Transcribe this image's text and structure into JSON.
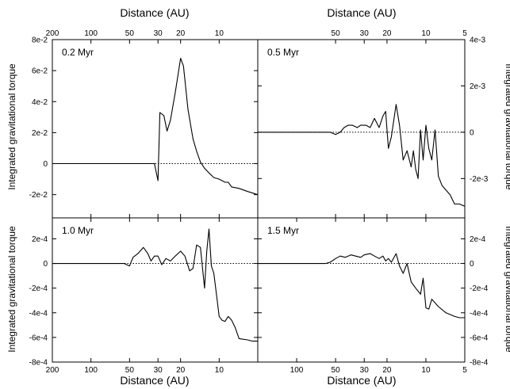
{
  "chart_data": [
    {
      "type": "line",
      "panel": "top-left",
      "label": "0.2 Myr",
      "xlabel": "Distance (AU)",
      "ylabel": "Integrated gravitational torque",
      "xscale": "log",
      "xlim": [
        200,
        5
      ],
      "ylim": [
        -0.035,
        0.08
      ],
      "x_ticks": [
        200,
        100,
        50,
        30,
        20,
        10
      ],
      "x_tick_labels": [
        "200",
        "100",
        "50",
        "30",
        "20",
        "10"
      ],
      "y_ticks": [
        -0.02,
        0,
        0.02,
        0.04,
        0.06,
        0.08
      ],
      "y_tick_labels": [
        "-2e-2",
        "0",
        "2e-2",
        "4e-2",
        "6e-2",
        "8e-2"
      ],
      "reference_line": 0,
      "series": [
        {
          "values": [
            [
              200,
              0
            ],
            [
              100,
              0
            ],
            [
              60,
              0
            ],
            [
              40,
              0
            ],
            [
              32,
              0
            ],
            [
              30,
              -0.011
            ],
            [
              29,
              0.033
            ],
            [
              27,
              0.031
            ],
            [
              25.5,
              0.021
            ],
            [
              24,
              0.028
            ],
            [
              22,
              0.046
            ],
            [
              20.5,
              0.062
            ],
            [
              20,
              0.068
            ],
            [
              19,
              0.063
            ],
            [
              17.5,
              0.035
            ],
            [
              16,
              0.016
            ],
            [
              15,
              0.008
            ],
            [
              14,
              0.001
            ],
            [
              13,
              -0.003
            ],
            [
              12,
              -0.006
            ],
            [
              11,
              -0.009
            ],
            [
              10,
              -0.01
            ],
            [
              9,
              -0.012
            ],
            [
              8.5,
              -0.012
            ],
            [
              8,
              -0.015
            ],
            [
              7,
              -0.016
            ],
            [
              6,
              -0.018
            ],
            [
              5,
              -0.02
            ]
          ]
        }
      ]
    },
    {
      "type": "line",
      "panel": "top-right",
      "label": "0.5 Myr",
      "xlabel": "Distance (AU)",
      "ylabel": "Integrated gravitational torque",
      "xscale": "log",
      "xlim": [
        200,
        5
      ],
      "ylim": [
        -0.0037,
        0.004
      ],
      "x_ticks": [
        50,
        30,
        20,
        10,
        5
      ],
      "x_tick_labels": [
        "50",
        "30",
        "20",
        "10",
        "5"
      ],
      "y_ticks": [
        -0.002,
        0,
        0.002,
        0.004
      ],
      "y_tick_labels": [
        "-2e-3",
        "0",
        "2e-3",
        "4e-3"
      ],
      "reference_line": 0,
      "series": [
        {
          "values": [
            [
              200,
              0
            ],
            [
              100,
              0
            ],
            [
              55,
              0
            ],
            [
              50,
              -0.0001
            ],
            [
              46,
              0
            ],
            [
              43,
              0.0002
            ],
            [
              40,
              0.0003
            ],
            [
              37,
              0.0003
            ],
            [
              34,
              0.0002
            ],
            [
              32,
              0.0003
            ],
            [
              29,
              0.0003
            ],
            [
              27,
              0.0002
            ],
            [
              25,
              0.0006
            ],
            [
              23,
              0.0002
            ],
            [
              21.5,
              0.0007
            ],
            [
              20.5,
              0.0009
            ],
            [
              19.5,
              -0.0007
            ],
            [
              18.5,
              -0.0002
            ],
            [
              17,
              0.0012
            ],
            [
              16,
              0.0003
            ],
            [
              15,
              -0.0012
            ],
            [
              14,
              -0.0008
            ],
            [
              13,
              -0.0015
            ],
            [
              12.5,
              -0.0008
            ],
            [
              12,
              -0.0016
            ],
            [
              11.5,
              -0.002
            ],
            [
              11,
              0.0001
            ],
            [
              10.5,
              -0.0012
            ],
            [
              10,
              0.0003
            ],
            [
              9.5,
              -0.0007
            ],
            [
              9,
              -0.0012
            ],
            [
              8.5,
              0.0001
            ],
            [
              8,
              -0.0019
            ],
            [
              7.5,
              -0.0023
            ],
            [
              7,
              -0.0025
            ],
            [
              6.5,
              -0.0027
            ],
            [
              6,
              -0.0031
            ],
            [
              5.5,
              -0.0031
            ],
            [
              5,
              -0.0032
            ]
          ]
        }
      ]
    },
    {
      "type": "line",
      "panel": "bottom-left",
      "label": "1.0 Myr",
      "xlabel": "Distance (AU)",
      "ylabel": "Integrated gravitational torque",
      "xscale": "log",
      "xlim": [
        200,
        5
      ],
      "ylim": [
        -0.0008,
        0.00037
      ],
      "x_ticks": [
        200,
        100,
        50,
        30,
        20,
        10
      ],
      "x_tick_labels": [
        "200",
        "100",
        "50",
        "30",
        "20",
        "10"
      ],
      "y_ticks": [
        -0.0008,
        -0.0006,
        -0.0004,
        -0.0002,
        0,
        0.0002
      ],
      "y_tick_labels": [
        "-8e-4",
        "-6e-4",
        "-4e-4",
        "-2e-4",
        "0",
        "2e-4"
      ],
      "reference_line": 0,
      "series": [
        {
          "values": [
            [
              200,
              0
            ],
            [
              100,
              0
            ],
            [
              55,
              0
            ],
            [
              50,
              -2e-05
            ],
            [
              47,
              5e-05
            ],
            [
              43,
              8e-05
            ],
            [
              39,
              0.00013
            ],
            [
              36,
              8e-05
            ],
            [
              34,
              2e-05
            ],
            [
              32,
              6e-05
            ],
            [
              30,
              6e-05
            ],
            [
              28,
              -1e-05
            ],
            [
              26,
              4e-05
            ],
            [
              24,
              2e-05
            ],
            [
              22,
              6e-05
            ],
            [
              20,
              0.0001
            ],
            [
              18.5,
              6e-05
            ],
            [
              17,
              -6e-05
            ],
            [
              16,
              -4e-05
            ],
            [
              15,
              0.00015
            ],
            [
              14,
              0.00013
            ],
            [
              13,
              -0.0002
            ],
            [
              12.5,
              0.0001
            ],
            [
              12,
              0.00028
            ],
            [
              11.5,
              -2e-05
            ],
            [
              11,
              -8e-05
            ],
            [
              10.5,
              -0.00025
            ],
            [
              10,
              -0.00043
            ],
            [
              9.5,
              -0.00046
            ],
            [
              9,
              -0.00047
            ],
            [
              8.5,
              -0.00043
            ],
            [
              8,
              -0.00046
            ],
            [
              7.5,
              -0.00052
            ],
            [
              7,
              -0.00061
            ],
            [
              6,
              -0.00062
            ],
            [
              5.5,
              -0.00063
            ],
            [
              5,
              -0.00063
            ]
          ]
        }
      ]
    },
    {
      "type": "line",
      "panel": "bottom-right",
      "label": "1.5 Myr",
      "xlabel": "Distance (AU)",
      "ylabel": "Integrated gravitational torque",
      "xscale": "log",
      "xlim": [
        200,
        5
      ],
      "ylim": [
        -0.0008,
        0.00037
      ],
      "x_ticks": [
        100,
        50,
        30,
        20,
        10,
        5
      ],
      "x_tick_labels": [
        "100",
        "50",
        "30",
        "20",
        "10",
        "5"
      ],
      "y_ticks": [
        -0.0008,
        -0.0006,
        -0.0004,
        -0.0002,
        0,
        0.0002
      ],
      "y_tick_labels": [
        "-8e-4",
        "-6e-4",
        "-4e-4",
        "-2e-4",
        "0",
        "2e-4"
      ],
      "reference_line": 0,
      "series": [
        {
          "values": [
            [
              200,
              0
            ],
            [
              100,
              0
            ],
            [
              60,
              0
            ],
            [
              55,
              1e-05
            ],
            [
              50,
              4e-05
            ],
            [
              46,
              6e-05
            ],
            [
              42,
              5e-05
            ],
            [
              38,
              7e-05
            ],
            [
              35,
              6e-05
            ],
            [
              32,
              5e-05
            ],
            [
              30,
              7e-05
            ],
            [
              27,
              8e-05
            ],
            [
              25,
              6e-05
            ],
            [
              23,
              4e-05
            ],
            [
              21.5,
              6e-05
            ],
            [
              20.5,
              2e-05
            ],
            [
              19.5,
              4e-05
            ],
            [
              18.5,
              1e-05
            ],
            [
              17,
              8e-05
            ],
            [
              16,
              -2e-05
            ],
            [
              15,
              -8e-05
            ],
            [
              14,
              0
            ],
            [
              13,
              -0.00015
            ],
            [
              12,
              -0.0002
            ],
            [
              11,
              -0.00025
            ],
            [
              10.5,
              -0.00012
            ],
            [
              10,
              -0.00036
            ],
            [
              9.5,
              -0.00037
            ],
            [
              9,
              -0.00029
            ],
            [
              8,
              -0.00035
            ],
            [
              7,
              -0.0004
            ],
            [
              6,
              -0.00043
            ],
            [
              5.5,
              -0.00044
            ],
            [
              5,
              -0.00044
            ]
          ]
        }
      ]
    }
  ],
  "axis_titles": {
    "top_left": "Distance (AU)",
    "top_right": "Distance (AU)",
    "bottom_left": "Distance (AU)",
    "bottom_right": "Distance (AU)",
    "y_left_top": "Integrated gravitational torque",
    "y_left_bottom": "Integrated gravitational torque",
    "y_right_top": "Integrated gravitational torque",
    "y_right_bottom": "Integrated gravitational torque"
  }
}
